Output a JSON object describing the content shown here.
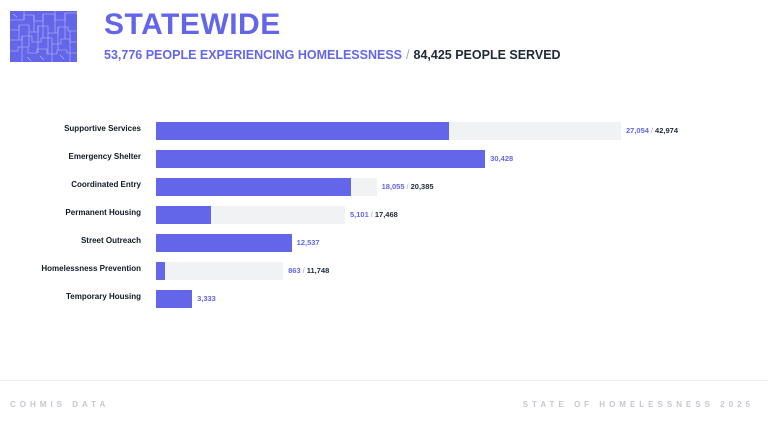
{
  "header": {
    "title": "STATEWIDE",
    "people_experiencing": "53,776 PEOPLE EXPERIENCING HOMELESSNESS",
    "separator": "/",
    "people_served": "84,425 PEOPLE SERVED"
  },
  "colors": {
    "accent": "#6366e8",
    "track": "#f1f2f4",
    "text_dark": "#1f2937",
    "footer": "#c4c8ce"
  },
  "chart_data": {
    "type": "bar",
    "orientation": "horizontal",
    "categories": [
      "Supportive Services",
      "Emergency Shelter",
      "Coordinated Entry",
      "Permanent Housing",
      "Street Outreach",
      "Homelessness Prevention",
      "Temporary Housing"
    ],
    "series": [
      {
        "values": [
          27054,
          30428,
          18055,
          5101,
          12537,
          863,
          3333
        ]
      },
      {
        "values": [
          42974,
          null,
          20385,
          17468,
          null,
          11748,
          null
        ]
      }
    ],
    "labels": [
      [
        "27,054",
        "42,974"
      ],
      [
        "30,428",
        ""
      ],
      [
        "18,055",
        "20,385"
      ],
      [
        "5,101",
        "17,468"
      ],
      [
        "12,537",
        ""
      ],
      [
        "863",
        "11,748"
      ],
      [
        "3,333",
        ""
      ]
    ],
    "xlim": [
      0,
      42974
    ]
  },
  "footer": {
    "left": "COHMIS DATA",
    "right": "STATE OF HOMELESSNESS 2025"
  },
  "icons": {
    "map": "colorado-counties-map-icon"
  }
}
